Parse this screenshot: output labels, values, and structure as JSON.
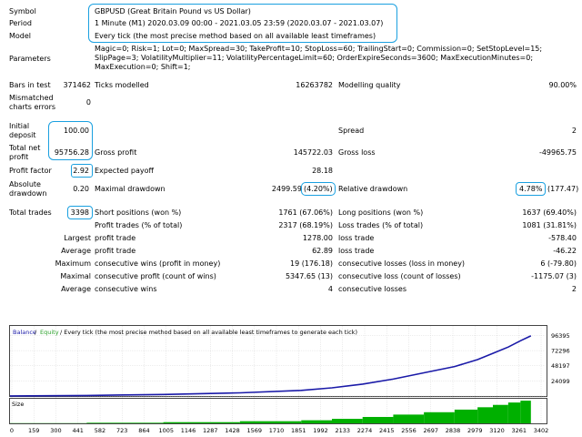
{
  "header": {
    "symbol_label": "Symbol",
    "symbol_value": "GBPUSD (Great Britain Pound vs US Dollar)",
    "period_label": "Period",
    "period_value": "1 Minute (M1) 2020.03.09 00:00 - 2021.03.05 23:59 (2020.03.07 - 2021.03.07)",
    "model_label": "Model",
    "model_value": "Every tick (the most precise method based on all available least timeframes)",
    "parameters_label": "Parameters",
    "parameters_lines": [
      "Magic=0; Risk=1; Lot=0; MaxSpread=30; TakeProfit=10; StopLoss=60; TrailingStart=0; Commission=0; SetStopLevel=15;",
      "SlipPage=3; VolatilityMultiplier=11; VolatilityPercentageLimit=60; OrderExpireSeconds=3600; MaxExecutionMinutes=0;",
      "MaxExecution=0; Shift=1;"
    ]
  },
  "stats": {
    "bars_label": "Bars in test",
    "bars_value": "371462",
    "ticks_label": "Ticks modelled",
    "ticks_value": "16263782",
    "quality_label": "Modelling quality",
    "quality_value": "90.00%",
    "mismatch_label_1": "Mismatched",
    "mismatch_label_2": "charts errors",
    "mismatch_value": "0",
    "deposit_label_1": "Initial",
    "deposit_label_2": "deposit",
    "deposit_value": "100.00",
    "spread_label": "Spread",
    "spread_value": "2",
    "netprofit_label_1": "Total net",
    "netprofit_label_2": "profit",
    "netprofit_value": "95756.28",
    "grossprofit_label": "Gross profit",
    "grossprofit_value": "145722.03",
    "grossloss_label": "Gross loss",
    "grossloss_value": "-49965.75",
    "pf_label": "Profit factor",
    "pf_value": "2.92",
    "payoff_label": "Expected payoff",
    "payoff_value": "28.18",
    "absdd_label_1": "Absolute",
    "absdd_label_2": "drawdown",
    "absdd_value": "0.20",
    "maxdd_label": "Maximal drawdown",
    "maxdd_value": "2499.59",
    "maxdd_pct": "(4.20%)",
    "reldd_label": "Relative drawdown",
    "reldd_pct": "4.78%",
    "reldd_value": "(177.47)",
    "trades_label": "Total trades",
    "trades_value": "3398",
    "short_label": "Short positions (won %)",
    "short_value": "1761 (67.06%)",
    "long_label": "Long positions (won %)",
    "long_value": "1637 (69.40%)",
    "ptrades_label": "Profit trades (% of total)",
    "ptrades_value": "2317 (68.19%)",
    "ltrades_label": "Loss trades (% of total)",
    "ltrades_value": "1081 (31.81%)",
    "largest_label": "Largest",
    "largest_profit_label": "profit trade",
    "largest_profit_value": "1278.00",
    "largest_loss_label": "loss trade",
    "largest_loss_value": "-578.40",
    "average_label": "Average",
    "average_profit_label": "profit trade",
    "average_profit_value": "62.89",
    "average_loss_label": "loss trade",
    "average_loss_value": "-46.22",
    "maximum_label": "Maximum",
    "max_wins_label": "consecutive wins (profit in money)",
    "max_wins_value": "19 (176.18)",
    "max_losses_label": "consecutive losses (loss in money)",
    "max_losses_value": "6 (-79.80)",
    "maximal_label": "Maximal",
    "maximal_profit_label": "consecutive profit (count of wins)",
    "maximal_profit_value": "5347.65 (13)",
    "maximal_loss_label": "consecutive loss (count of losses)",
    "maximal_loss_value": "-1175.07 (3)",
    "avg2_label": "Average",
    "avg_wins_label": "consecutive wins",
    "avg_wins_value": "4",
    "avg_losses_label": "consecutive losses",
    "avg_losses_value": "2"
  },
  "chart_data": {
    "type": "line",
    "legend_balance": "Balance",
    "legend_sep": " / ",
    "legend_equity": "Equity",
    "legend_rest": " / Every tick (the most precise method based on all available least timeframes to generate each tick)",
    "size_label": "Size",
    "x_ticks": [
      "0",
      "159",
      "300",
      "441",
      "582",
      "723",
      "864",
      "1005",
      "1146",
      "1287",
      "1428",
      "1569",
      "1710",
      "1851",
      "1992",
      "2133",
      "2274",
      "2415",
      "2556",
      "2697",
      "2838",
      "2979",
      "3120",
      "3261",
      "3402"
    ],
    "y_ticks": [
      "96395",
      "72296",
      "48197",
      "24099",
      "0"
    ],
    "ylim": [
      0,
      100000
    ],
    "xlim": [
      0,
      3500
    ],
    "balance_x": [
      0,
      500,
      1000,
      1500,
      1900,
      2100,
      2300,
      2500,
      2700,
      2900,
      3050,
      3150,
      3250,
      3330,
      3398
    ],
    "balance_y": [
      100,
      800,
      2500,
      5000,
      9000,
      13000,
      19000,
      27000,
      37000,
      47000,
      58000,
      68000,
      78000,
      88000,
      95756
    ],
    "colors": {
      "balance": "#1a1aa8",
      "equity": "#2aa02a",
      "size": "#00b000",
      "grid": "#d8d8d8",
      "highlight": "#1aa0e0"
    }
  }
}
